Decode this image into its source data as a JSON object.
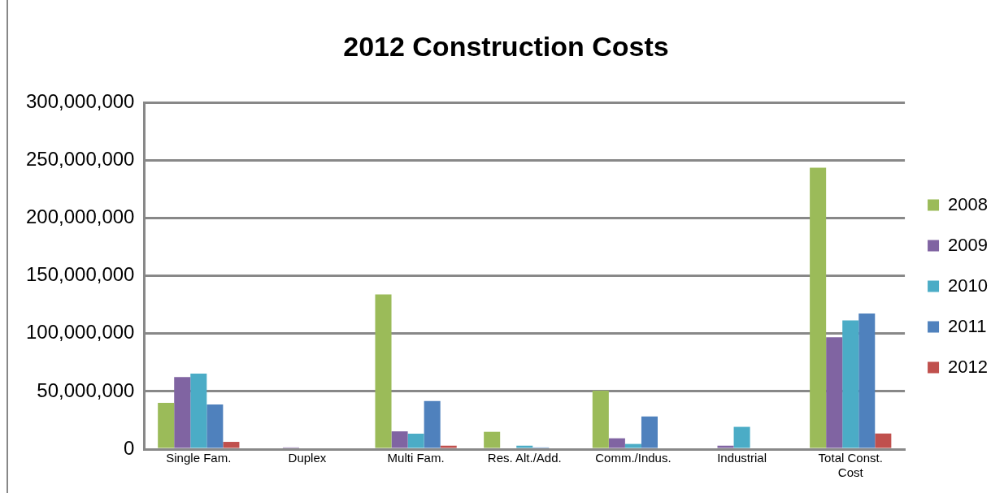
{
  "chart_data": {
    "type": "bar",
    "title": "2012 Construction Costs",
    "categories": [
      "Single Fam.",
      "Duplex",
      "Multi Fam.",
      "Res. Alt./Add.",
      "Comm./Indus.",
      "Industrial",
      "Total Const. Cost"
    ],
    "series": [
      {
        "name": "2008",
        "color": "#9bbb59",
        "values": [
          40000000,
          0,
          134000000,
          15000000,
          50600000,
          0,
          243700000
        ]
      },
      {
        "name": "2009",
        "color": "#8064a2",
        "values": [
          62400000,
          1500000,
          15400000,
          0,
          9400000,
          3000000,
          96800000
        ]
      },
      {
        "name": "2010",
        "color": "#4bacc6",
        "values": [
          65400000,
          0,
          13400000,
          3000000,
          4500000,
          19300000,
          111400000
        ]
      },
      {
        "name": "2011",
        "color": "#4f81bd",
        "values": [
          38600000,
          0,
          41600000,
          1500000,
          28300000,
          0,
          117400000
        ]
      },
      {
        "name": "2012",
        "color": "#c0504d",
        "values": [
          6300000,
          0,
          3000000,
          0,
          0,
          0,
          13600000
        ]
      }
    ],
    "ylim": [
      0,
      300000000
    ],
    "yticks": [
      0,
      {
        "value": 50000000,
        "label": "50,000,000"
      },
      {
        "value": 100000000,
        "label": "100,000,000"
      },
      {
        "value": 150000000,
        "label": "150,000,000"
      },
      {
        "value": 200000000,
        "label": "200,000,000"
      },
      {
        "value": 250000000,
        "label": "250,000,000"
      },
      {
        "value": 300000000,
        "label": "300,000,000"
      }
    ],
    "grid": "y",
    "legend": "right"
  }
}
